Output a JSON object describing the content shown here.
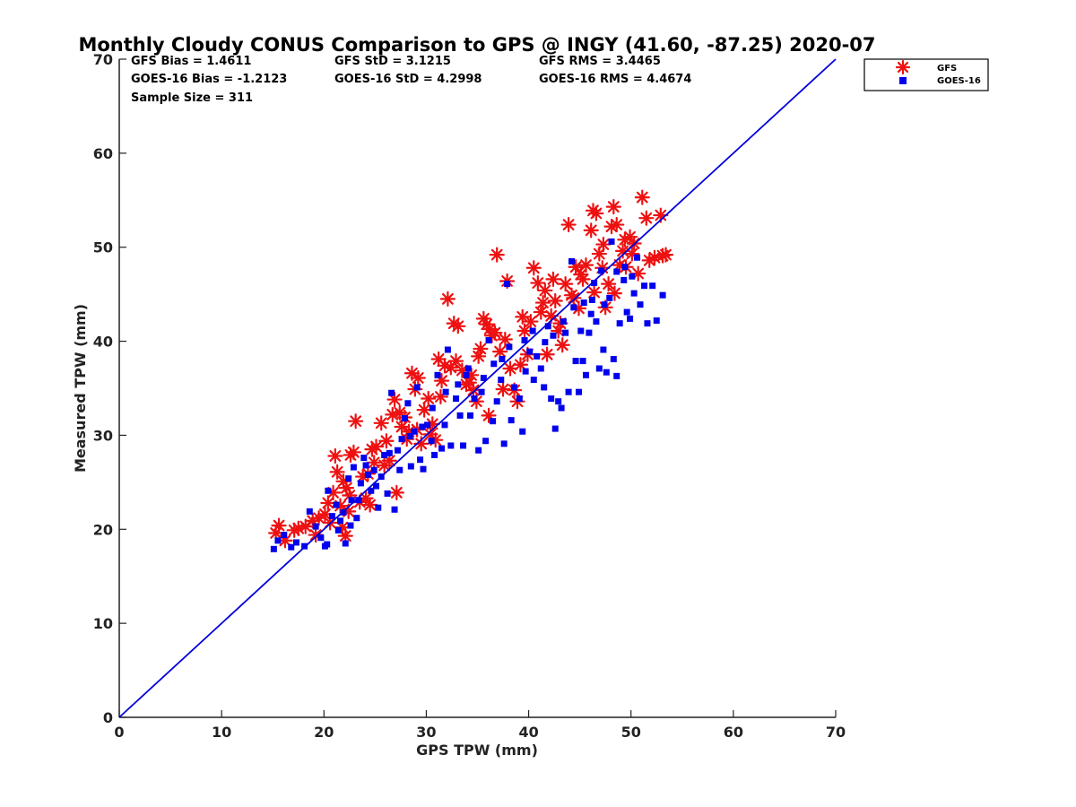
{
  "chart_data": {
    "type": "scatter",
    "title": "Monthly Cloudy CONUS Comparison to GPS @ INGY (41.60, -87.25) 2020-07",
    "xlabel": "GPS TPW (mm)",
    "ylabel": "Measured TPW (mm)",
    "xlim": [
      0,
      70
    ],
    "ylim": [
      0,
      70
    ],
    "xticks": [
      "0",
      "10",
      "20",
      "30",
      "40",
      "50",
      "60",
      "70"
    ],
    "yticks": [
      "0",
      "10",
      "20",
      "30",
      "40",
      "50",
      "60",
      "70"
    ],
    "grid": false,
    "legend_position": "top-right outside",
    "stats": [
      [
        "GFS Bias = 1.4611",
        "GFS StD = 3.1215",
        "GFS RMS = 3.4465"
      ],
      [
        "GOES-16 Bias = -1.2123",
        "GOES-16 StD = 4.2998",
        "GOES-16 RMS = 4.4674"
      ],
      [
        "Sample Size = 311"
      ]
    ],
    "reference_line": {
      "name": "1:1",
      "x": [
        0,
        70
      ],
      "y": [
        0,
        70
      ],
      "color": "#0000dd"
    },
    "series": [
      {
        "name": "GFS",
        "marker": "asterisk",
        "color": "#ee1111",
        "points": [
          [
            15.3,
            19.6
          ],
          [
            15.6,
            20.4
          ],
          [
            16.2,
            18.8
          ],
          [
            17.1,
            19.9
          ],
          [
            17.5,
            20.1
          ],
          [
            18.2,
            20.3
          ],
          [
            18.9,
            20.9
          ],
          [
            19.5,
            21.2
          ],
          [
            20.1,
            21.6
          ],
          [
            20.4,
            22.8
          ],
          [
            20.9,
            23.9
          ],
          [
            21.1,
            27.8
          ],
          [
            21.3,
            26.1
          ],
          [
            21.6,
            22.5
          ],
          [
            21.9,
            25.1
          ],
          [
            22.2,
            24.4
          ],
          [
            22.5,
            23.6
          ],
          [
            22.6,
            27.9
          ],
          [
            22.9,
            28.2
          ],
          [
            23.1,
            31.5
          ],
          [
            23.5,
            22.9
          ],
          [
            24.1,
            23.3
          ],
          [
            24.5,
            22.6
          ],
          [
            24.7,
            28.5
          ],
          [
            25.1,
            28.8
          ],
          [
            25.6,
            31.3
          ],
          [
            25.9,
            26.8
          ],
          [
            26.4,
            27.3
          ],
          [
            26.7,
            32.2
          ],
          [
            26.9,
            33.8
          ],
          [
            27.1,
            23.9
          ],
          [
            27.4,
            32.4
          ],
          [
            27.9,
            31.9
          ],
          [
            28.3,
            30.4
          ],
          [
            28.6,
            36.6
          ],
          [
            28.9,
            34.9
          ],
          [
            29.2,
            36.1
          ],
          [
            29.5,
            29.1
          ],
          [
            29.8,
            32.7
          ],
          [
            30.2,
            33.9
          ],
          [
            30.6,
            31.2
          ],
          [
            30.9,
            29.5
          ],
          [
            31.2,
            38.1
          ],
          [
            31.5,
            35.8
          ],
          [
            31.8,
            37.4
          ],
          [
            32.1,
            44.5
          ],
          [
            32.4,
            37.2
          ],
          [
            32.7,
            41.9
          ],
          [
            33.1,
            41.6
          ],
          [
            33.5,
            36.9
          ],
          [
            33.9,
            35.4
          ],
          [
            34.2,
            35.6
          ],
          [
            34.6,
            34.8
          ],
          [
            34.9,
            33.6
          ],
          [
            35.3,
            39.2
          ],
          [
            35.6,
            42.4
          ],
          [
            35.9,
            41.8
          ],
          [
            36.1,
            32.1
          ],
          [
            36.4,
            40.6
          ],
          [
            36.7,
            40.9
          ],
          [
            36.9,
            49.2
          ],
          [
            37.2,
            38.9
          ],
          [
            37.5,
            34.9
          ],
          [
            37.9,
            46.4
          ],
          [
            38.2,
            37.1
          ],
          [
            38.6,
            34.8
          ],
          [
            38.9,
            33.6
          ],
          [
            39.2,
            37.5
          ],
          [
            39.6,
            41.1
          ],
          [
            39.9,
            38.6
          ],
          [
            40.2,
            42.1
          ],
          [
            40.5,
            47.8
          ],
          [
            40.9,
            46.2
          ],
          [
            41.2,
            43.1
          ],
          [
            41.6,
            45.4
          ],
          [
            41.8,
            38.6
          ],
          [
            42.2,
            42.7
          ],
          [
            42.6,
            44.3
          ],
          [
            42.9,
            41.1
          ],
          [
            43.3,
            39.6
          ],
          [
            43.6,
            46.1
          ],
          [
            43.9,
            52.4
          ],
          [
            44.2,
            44.9
          ],
          [
            44.6,
            47.9
          ],
          [
            44.9,
            43.5
          ],
          [
            45.3,
            46.6
          ],
          [
            45.6,
            48.1
          ],
          [
            46.1,
            51.8
          ],
          [
            46.3,
            53.9
          ],
          [
            46.6,
            53.6
          ],
          [
            46.9,
            49.3
          ],
          [
            47.2,
            47.8
          ],
          [
            47.5,
            43.6
          ],
          [
            47.8,
            46.1
          ],
          [
            48.1,
            52.2
          ],
          [
            48.3,
            54.3
          ],
          [
            48.6,
            52.4
          ],
          [
            48.9,
            48.1
          ],
          [
            49.2,
            49.6
          ],
          [
            49.5,
            47.9
          ],
          [
            49.9,
            51.1
          ],
          [
            50.3,
            50.4
          ],
          [
            50.7,
            47.2
          ],
          [
            51.1,
            55.3
          ],
          [
            51.5,
            53.1
          ],
          [
            51.8,
            48.6
          ],
          [
            52.3,
            48.9
          ],
          [
            52.9,
            53.4
          ],
          [
            53.1,
            49.1
          ],
          [
            53.4,
            49.2
          ],
          [
            21.8,
            20.2
          ],
          [
            22.4,
            21.9
          ],
          [
            23.8,
            25.6
          ],
          [
            24.9,
            27.1
          ],
          [
            26.1,
            29.4
          ],
          [
            27.6,
            30.9
          ],
          [
            29.1,
            30.6
          ],
          [
            30.4,
            30.1
          ],
          [
            32.9,
            37.9
          ],
          [
            34.4,
            36.4
          ],
          [
            35.1,
            38.4
          ],
          [
            36.2,
            41.3
          ],
          [
            37.7,
            40.2
          ],
          [
            39.4,
            42.6
          ],
          [
            41.4,
            44.1
          ],
          [
            42.4,
            46.6
          ],
          [
            43.1,
            41.9
          ],
          [
            44.4,
            44.6
          ],
          [
            45.1,
            47.1
          ],
          [
            46.4,
            45.2
          ],
          [
            47.3,
            50.3
          ],
          [
            48.4,
            45.1
          ],
          [
            49.4,
            50.8
          ],
          [
            50.1,
            49.3
          ],
          [
            19.2,
            19.4
          ],
          [
            20.6,
            20.7
          ],
          [
            22.1,
            19.3
          ],
          [
            24.3,
            25.9
          ],
          [
            28.1,
            29.6
          ],
          [
            31.4,
            34.1
          ]
        ]
      },
      {
        "name": "GOES-16",
        "marker": "square",
        "color": "#0000ee",
        "points": [
          [
            15.1,
            17.9
          ],
          [
            15.5,
            18.8
          ],
          [
            16.1,
            19.4
          ],
          [
            16.8,
            18.1
          ],
          [
            17.3,
            18.6
          ],
          [
            18.1,
            18.2
          ],
          [
            18.6,
            21.9
          ],
          [
            19.2,
            20.3
          ],
          [
            19.7,
            19.1
          ],
          [
            20.1,
            18.2
          ],
          [
            20.4,
            24.1
          ],
          [
            20.8,
            21.4
          ],
          [
            21.2,
            22.6
          ],
          [
            21.6,
            20.9
          ],
          [
            21.9,
            21.8
          ],
          [
            22.1,
            18.5
          ],
          [
            22.4,
            25.4
          ],
          [
            22.7,
            23.1
          ],
          [
            22.9,
            26.6
          ],
          [
            23.2,
            21.2
          ],
          [
            23.6,
            24.9
          ],
          [
            23.9,
            27.6
          ],
          [
            24.3,
            25.8
          ],
          [
            24.6,
            24.1
          ],
          [
            24.9,
            26.3
          ],
          [
            25.3,
            22.3
          ],
          [
            25.6,
            25.6
          ],
          [
            25.9,
            27.9
          ],
          [
            26.2,
            23.8
          ],
          [
            26.6,
            34.5
          ],
          [
            26.9,
            22.1
          ],
          [
            27.2,
            28.4
          ],
          [
            27.6,
            29.6
          ],
          [
            27.9,
            31.8
          ],
          [
            28.2,
            33.4
          ],
          [
            28.5,
            26.7
          ],
          [
            28.8,
            30.4
          ],
          [
            29.1,
            35.1
          ],
          [
            29.4,
            27.4
          ],
          [
            29.7,
            26.4
          ],
          [
            30.1,
            31.1
          ],
          [
            30.5,
            29.4
          ],
          [
            30.8,
            27.9
          ],
          [
            31.1,
            36.4
          ],
          [
            31.5,
            28.6
          ],
          [
            31.8,
            31.1
          ],
          [
            32.1,
            39.1
          ],
          [
            32.4,
            28.9
          ],
          [
            32.9,
            33.9
          ],
          [
            33.3,
            32.1
          ],
          [
            33.6,
            28.9
          ],
          [
            33.9,
            36.4
          ],
          [
            34.3,
            32.1
          ],
          [
            34.7,
            33.9
          ],
          [
            35.1,
            28.4
          ],
          [
            35.4,
            34.6
          ],
          [
            35.8,
            29.4
          ],
          [
            36.1,
            40.1
          ],
          [
            36.5,
            31.5
          ],
          [
            36.9,
            33.6
          ],
          [
            37.3,
            35.9
          ],
          [
            37.6,
            29.1
          ],
          [
            37.9,
            46.1
          ],
          [
            38.3,
            31.6
          ],
          [
            38.6,
            35.1
          ],
          [
            39.1,
            33.9
          ],
          [
            39.4,
            30.4
          ],
          [
            39.7,
            36.8
          ],
          [
            40.1,
            38.9
          ],
          [
            40.5,
            35.9
          ],
          [
            40.8,
            38.4
          ],
          [
            41.2,
            37.1
          ],
          [
            41.5,
            35.1
          ],
          [
            41.9,
            41.6
          ],
          [
            42.2,
            33.9
          ],
          [
            42.6,
            30.7
          ],
          [
            42.9,
            33.6
          ],
          [
            43.2,
            32.9
          ],
          [
            43.6,
            40.9
          ],
          [
            43.9,
            34.6
          ],
          [
            44.2,
            48.5
          ],
          [
            44.6,
            37.9
          ],
          [
            44.9,
            34.6
          ],
          [
            45.3,
            37.9
          ],
          [
            45.6,
            36.4
          ],
          [
            45.9,
            40.9
          ],
          [
            46.2,
            44.4
          ],
          [
            46.6,
            42.1
          ],
          [
            46.9,
            37.1
          ],
          [
            47.3,
            39.1
          ],
          [
            47.6,
            36.7
          ],
          [
            47.9,
            44.6
          ],
          [
            48.3,
            38.1
          ],
          [
            48.6,
            36.3
          ],
          [
            48.9,
            41.9
          ],
          [
            49.3,
            46.5
          ],
          [
            49.6,
            43.1
          ],
          [
            49.9,
            42.4
          ],
          [
            50.3,
            45.1
          ],
          [
            50.6,
            48.9
          ],
          [
            50.9,
            43.9
          ],
          [
            51.3,
            45.9
          ],
          [
            51.6,
            41.9
          ],
          [
            52.1,
            45.9
          ],
          [
            52.5,
            42.2
          ],
          [
            53.1,
            44.9
          ],
          [
            48.1,
            50.6
          ],
          [
            47.1,
            47.5
          ],
          [
            46.4,
            46.2
          ],
          [
            45.1,
            41.1
          ],
          [
            20.3,
            18.4
          ],
          [
            21.4,
            19.9
          ],
          [
            22.6,
            20.4
          ],
          [
            23.4,
            23.1
          ],
          [
            24.1,
            26.8
          ],
          [
            25.1,
            24.6
          ],
          [
            26.4,
            28.1
          ],
          [
            27.4,
            26.3
          ],
          [
            28.4,
            29.9
          ],
          [
            29.6,
            30.9
          ],
          [
            30.6,
            32.9
          ],
          [
            31.9,
            34.6
          ],
          [
            33.1,
            35.4
          ],
          [
            34.1,
            37.1
          ],
          [
            35.6,
            36.1
          ],
          [
            36.6,
            37.6
          ],
          [
            37.4,
            38.1
          ],
          [
            38.1,
            39.4
          ],
          [
            39.6,
            40.1
          ],
          [
            40.4,
            41.1
          ],
          [
            41.6,
            39.9
          ],
          [
            42.4,
            40.6
          ],
          [
            43.4,
            42.1
          ],
          [
            44.4,
            43.6
          ],
          [
            45.4,
            44.1
          ],
          [
            46.1,
            42.9
          ],
          [
            47.4,
            43.9
          ],
          [
            48.6,
            47.4
          ],
          [
            49.4,
            47.9
          ],
          [
            50.1,
            46.9
          ]
        ]
      }
    ]
  }
}
